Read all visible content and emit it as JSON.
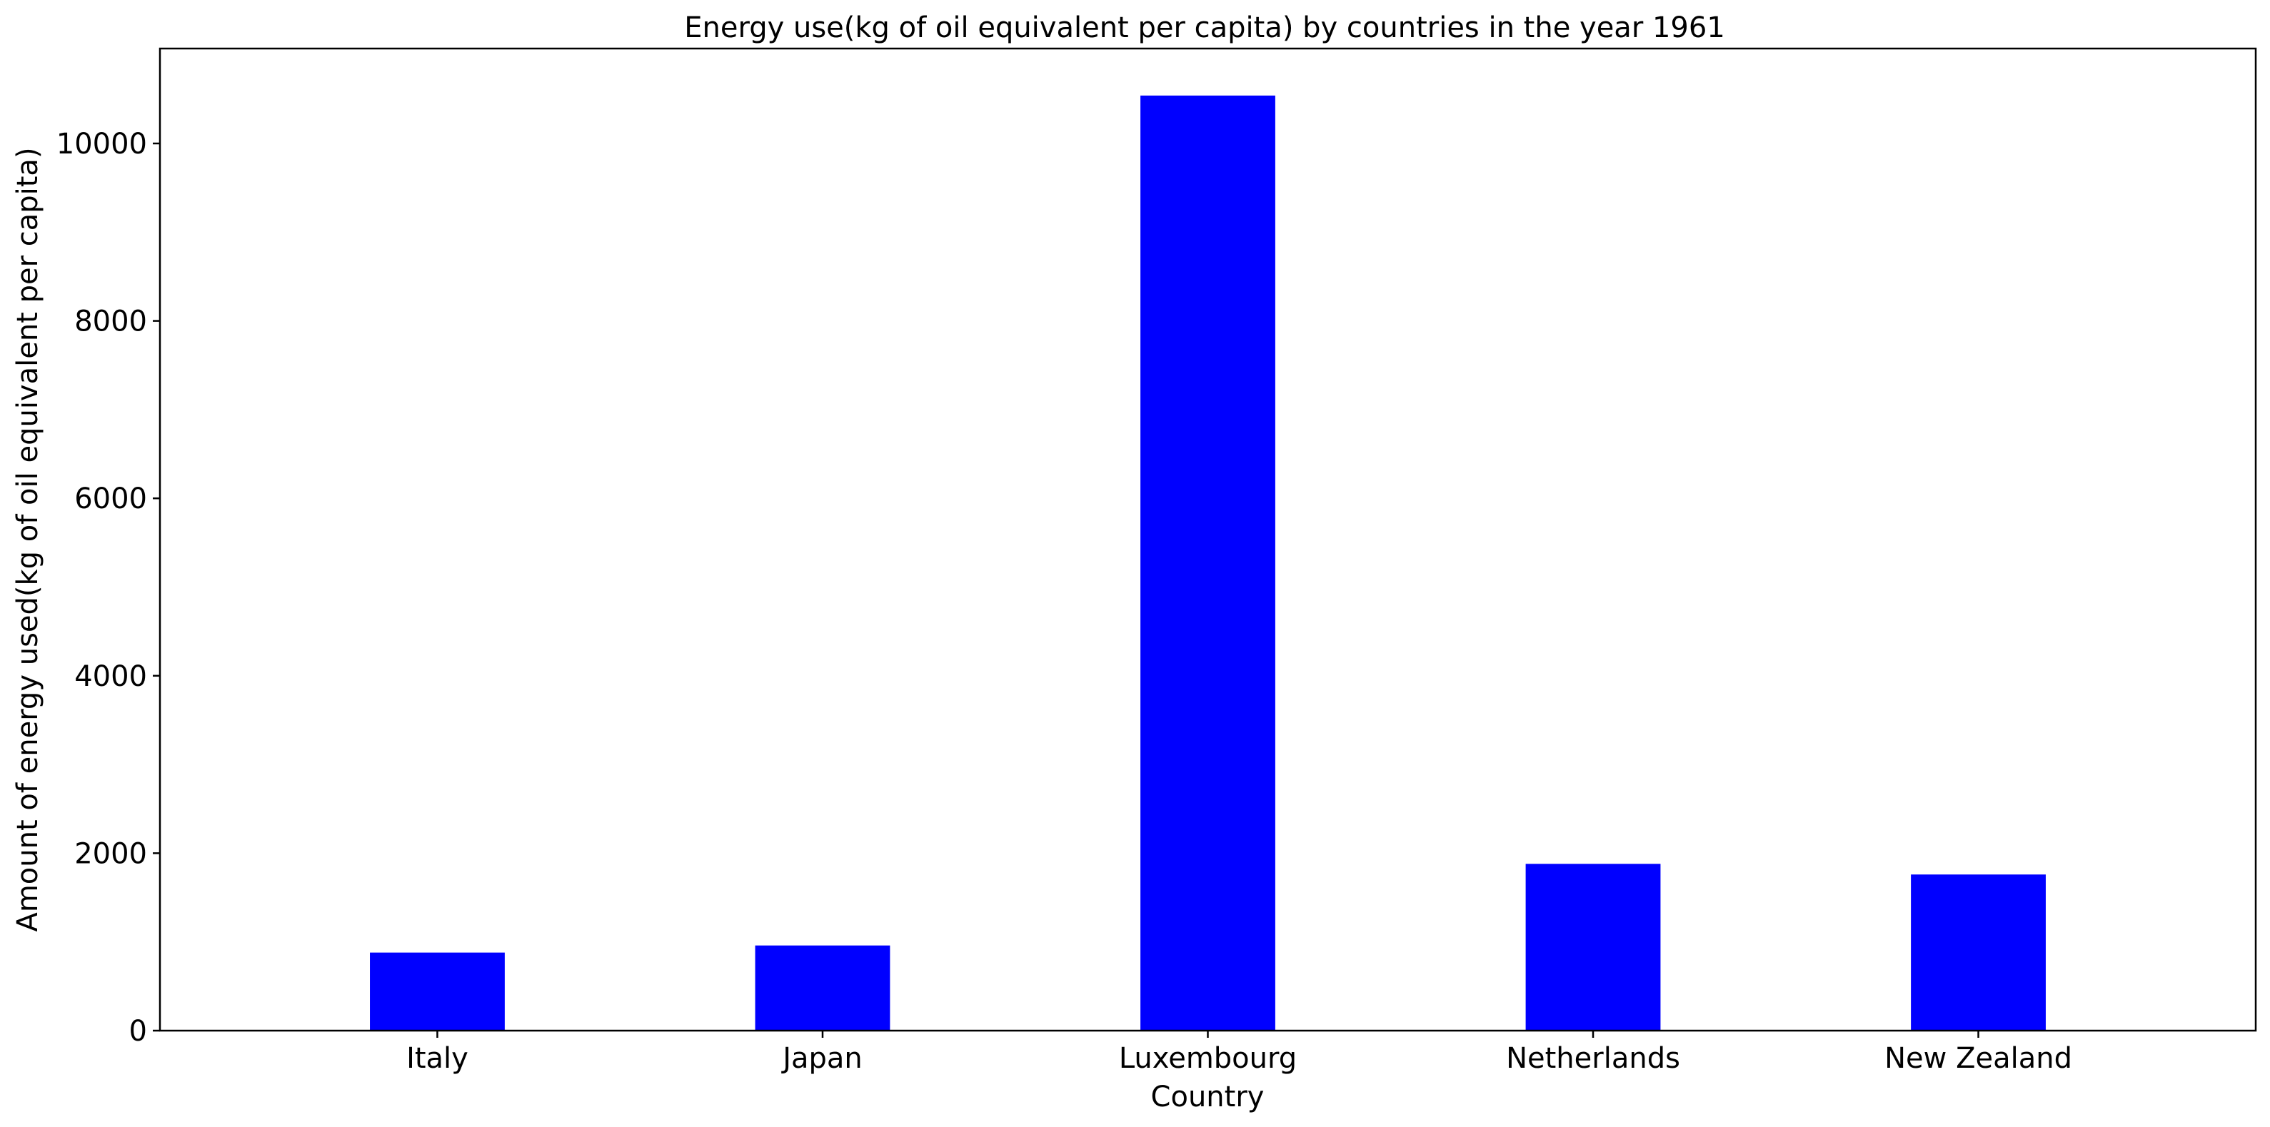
{
  "chart_data": {
    "type": "bar",
    "title": "Energy use(kg of oil equivalent per capita) by countries in the year 1961",
    "xlabel": "Country",
    "ylabel": "Amount of energy used(kg of oil equivalent per capita)",
    "categories": [
      "Italy",
      "Japan",
      "Luxembourg",
      "Netherlands",
      "New Zealand"
    ],
    "values": [
      880,
      960,
      10540,
      1880,
      1760
    ],
    "ylim": [
      0,
      11070
    ],
    "yticks": [
      0,
      2000,
      4000,
      6000,
      8000,
      10000
    ],
    "bar_color": "#0000ff",
    "grid": false,
    "legend": "none"
  }
}
